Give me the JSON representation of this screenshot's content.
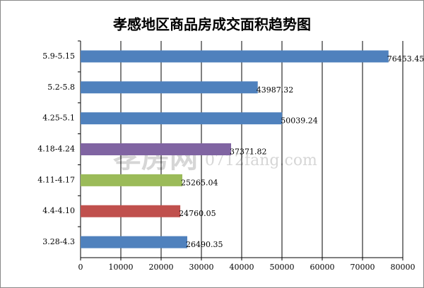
{
  "chart_data": {
    "type": "barh",
    "title": "孝感地区商品房成交面积趋势图",
    "categories": [
      "5.9-5.15",
      "5.2-5.8",
      "4.25-5.1",
      "4.18-4.24",
      "4.11-4.17",
      "4.4-4.10",
      "3.28-4.3"
    ],
    "values": [
      76453.45,
      43987.32,
      50039.24,
      37371.82,
      25265.04,
      24760.05,
      26490.35
    ],
    "colors": [
      "#4f81bd",
      "#4f81bd",
      "#4f81bd",
      "#8064a2",
      "#9bbb59",
      "#c0504d",
      "#4f81bd"
    ],
    "xlim": [
      0,
      80000
    ],
    "xticks": [
      0,
      10000,
      20000,
      30000,
      40000,
      50000,
      60000,
      70000,
      80000
    ],
    "grid": true,
    "watermark": [
      "孝房网",
      "0712fang.com"
    ]
  }
}
